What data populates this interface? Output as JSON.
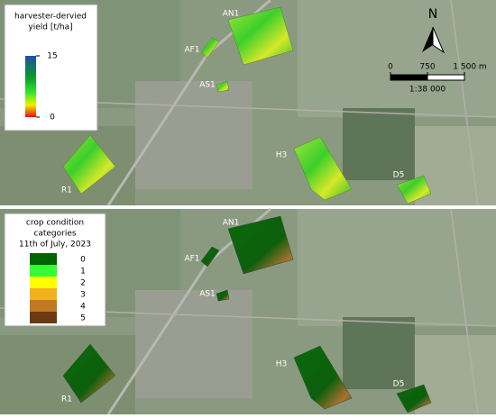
{
  "panels": [
    {
      "legend": {
        "title_lines": [
          "harvester-dervied",
          "yield [t/ha]"
        ],
        "colorbar_ticks": [
          15,
          0
        ],
        "colorbar_range": [
          0,
          15
        ]
      },
      "fields": [
        "AN1",
        "AF1",
        "AS1",
        "R1",
        "H3",
        "D5"
      ],
      "north": "N",
      "scale": {
        "ticks": [
          0,
          750,
          {
            "value": 1500,
            "label": "1 500 m"
          }
        ],
        "ratio": "1:38 000"
      }
    },
    {
      "legend": {
        "title_lines": [
          "crop condition",
          "categories",
          "11th of July, 2023"
        ],
        "categories": [
          {
            "label": 0,
            "color": "#006400"
          },
          {
            "label": 1,
            "color": "#33ff33"
          },
          {
            "label": 2,
            "color": "#ffff00"
          },
          {
            "label": 3,
            "color": "#f2b21c"
          },
          {
            "label": 4,
            "color": "#c07a20"
          },
          {
            "label": 5,
            "color": "#6b3a10"
          }
        ]
      },
      "fields": [
        "AN1",
        "AF1",
        "AS1",
        "R1",
        "H3",
        "D5"
      ]
    }
  ]
}
